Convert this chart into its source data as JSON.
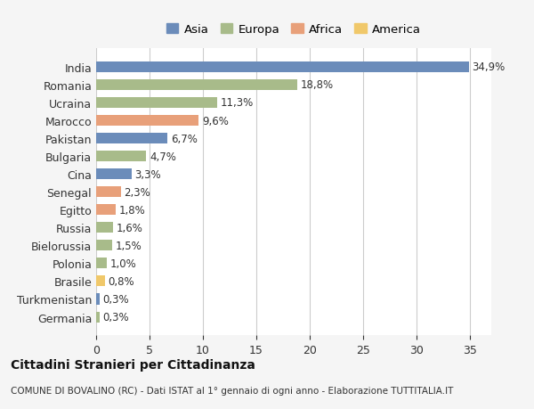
{
  "countries": [
    "India",
    "Romania",
    "Ucraina",
    "Marocco",
    "Pakistan",
    "Bulgaria",
    "Cina",
    "Senegal",
    "Egitto",
    "Russia",
    "Bielorussia",
    "Polonia",
    "Brasile",
    "Turkmenistan",
    "Germania"
  ],
  "values": [
    34.9,
    18.8,
    11.3,
    9.6,
    6.7,
    4.7,
    3.3,
    2.3,
    1.8,
    1.6,
    1.5,
    1.0,
    0.8,
    0.3,
    0.3
  ],
  "labels": [
    "34,9%",
    "18,8%",
    "11,3%",
    "9,6%",
    "6,7%",
    "4,7%",
    "3,3%",
    "2,3%",
    "1,8%",
    "1,6%",
    "1,5%",
    "1,0%",
    "0,8%",
    "0,3%",
    "0,3%"
  ],
  "continents": [
    "Asia",
    "Europa",
    "Europa",
    "Africa",
    "Asia",
    "Europa",
    "Asia",
    "Africa",
    "Africa",
    "Europa",
    "Europa",
    "Europa",
    "America",
    "Asia",
    "Europa"
  ],
  "colors": {
    "Asia": "#6b8cba",
    "Europa": "#a8bb8a",
    "Africa": "#e8a07a",
    "America": "#f0c86a"
  },
  "legend_order": [
    "Asia",
    "Europa",
    "Africa",
    "America"
  ],
  "title": "Cittadini Stranieri per Cittadinanza",
  "subtitle": "COMUNE DI BOVALINO (RC) - Dati ISTAT al 1° gennaio di ogni anno - Elaborazione TUTTITALIA.IT",
  "xlim": [
    0,
    37
  ],
  "xticks": [
    0,
    5,
    10,
    15,
    20,
    25,
    30,
    35
  ],
  "background_color": "#f5f5f5",
  "plot_background": "#ffffff",
  "grid_color": "#cccccc"
}
